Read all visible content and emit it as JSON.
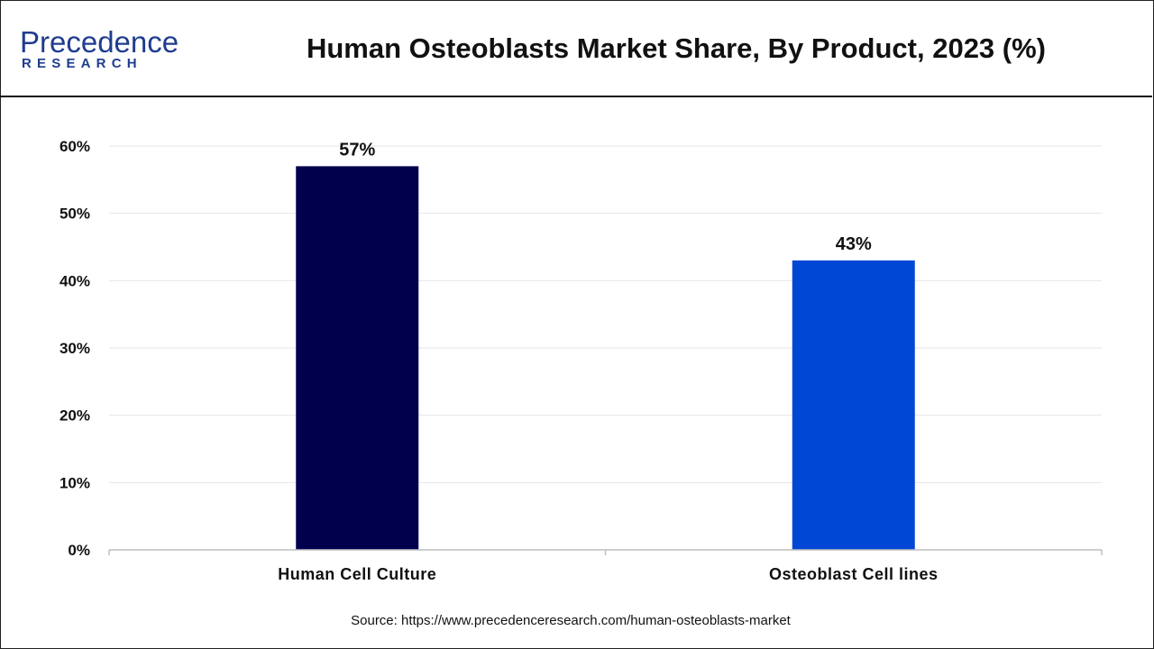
{
  "header": {
    "logo_top": "Precedence",
    "logo_bottom": "RESEARCH",
    "title": "Human Osteoblasts Market Share, By Product, 2023 (%)"
  },
  "colors": {
    "brand": "#1f3d8f",
    "bar1": "#00004d",
    "bar2": "#0047d6"
  },
  "chart_data": {
    "type": "bar",
    "title": "Human Osteoblasts Market Share, By Product, 2023 (%)",
    "categories": [
      "Human Cell Culture",
      "Osteoblast Cell lines"
    ],
    "values": [
      57,
      43
    ],
    "value_labels": [
      "57%",
      "43%"
    ],
    "bar_colors": [
      "#00004d",
      "#0047d6"
    ],
    "ylim": [
      0,
      60
    ],
    "yticks": [
      0,
      10,
      20,
      30,
      40,
      50,
      60
    ],
    "ytick_labels": [
      "0%",
      "10%",
      "20%",
      "30%",
      "40%",
      "50%",
      "60%"
    ],
    "grid": true,
    "xlabel": "",
    "ylabel": ""
  },
  "footer": {
    "source": "Source: https://www.precedenceresearch.com/human-osteoblasts-market"
  }
}
